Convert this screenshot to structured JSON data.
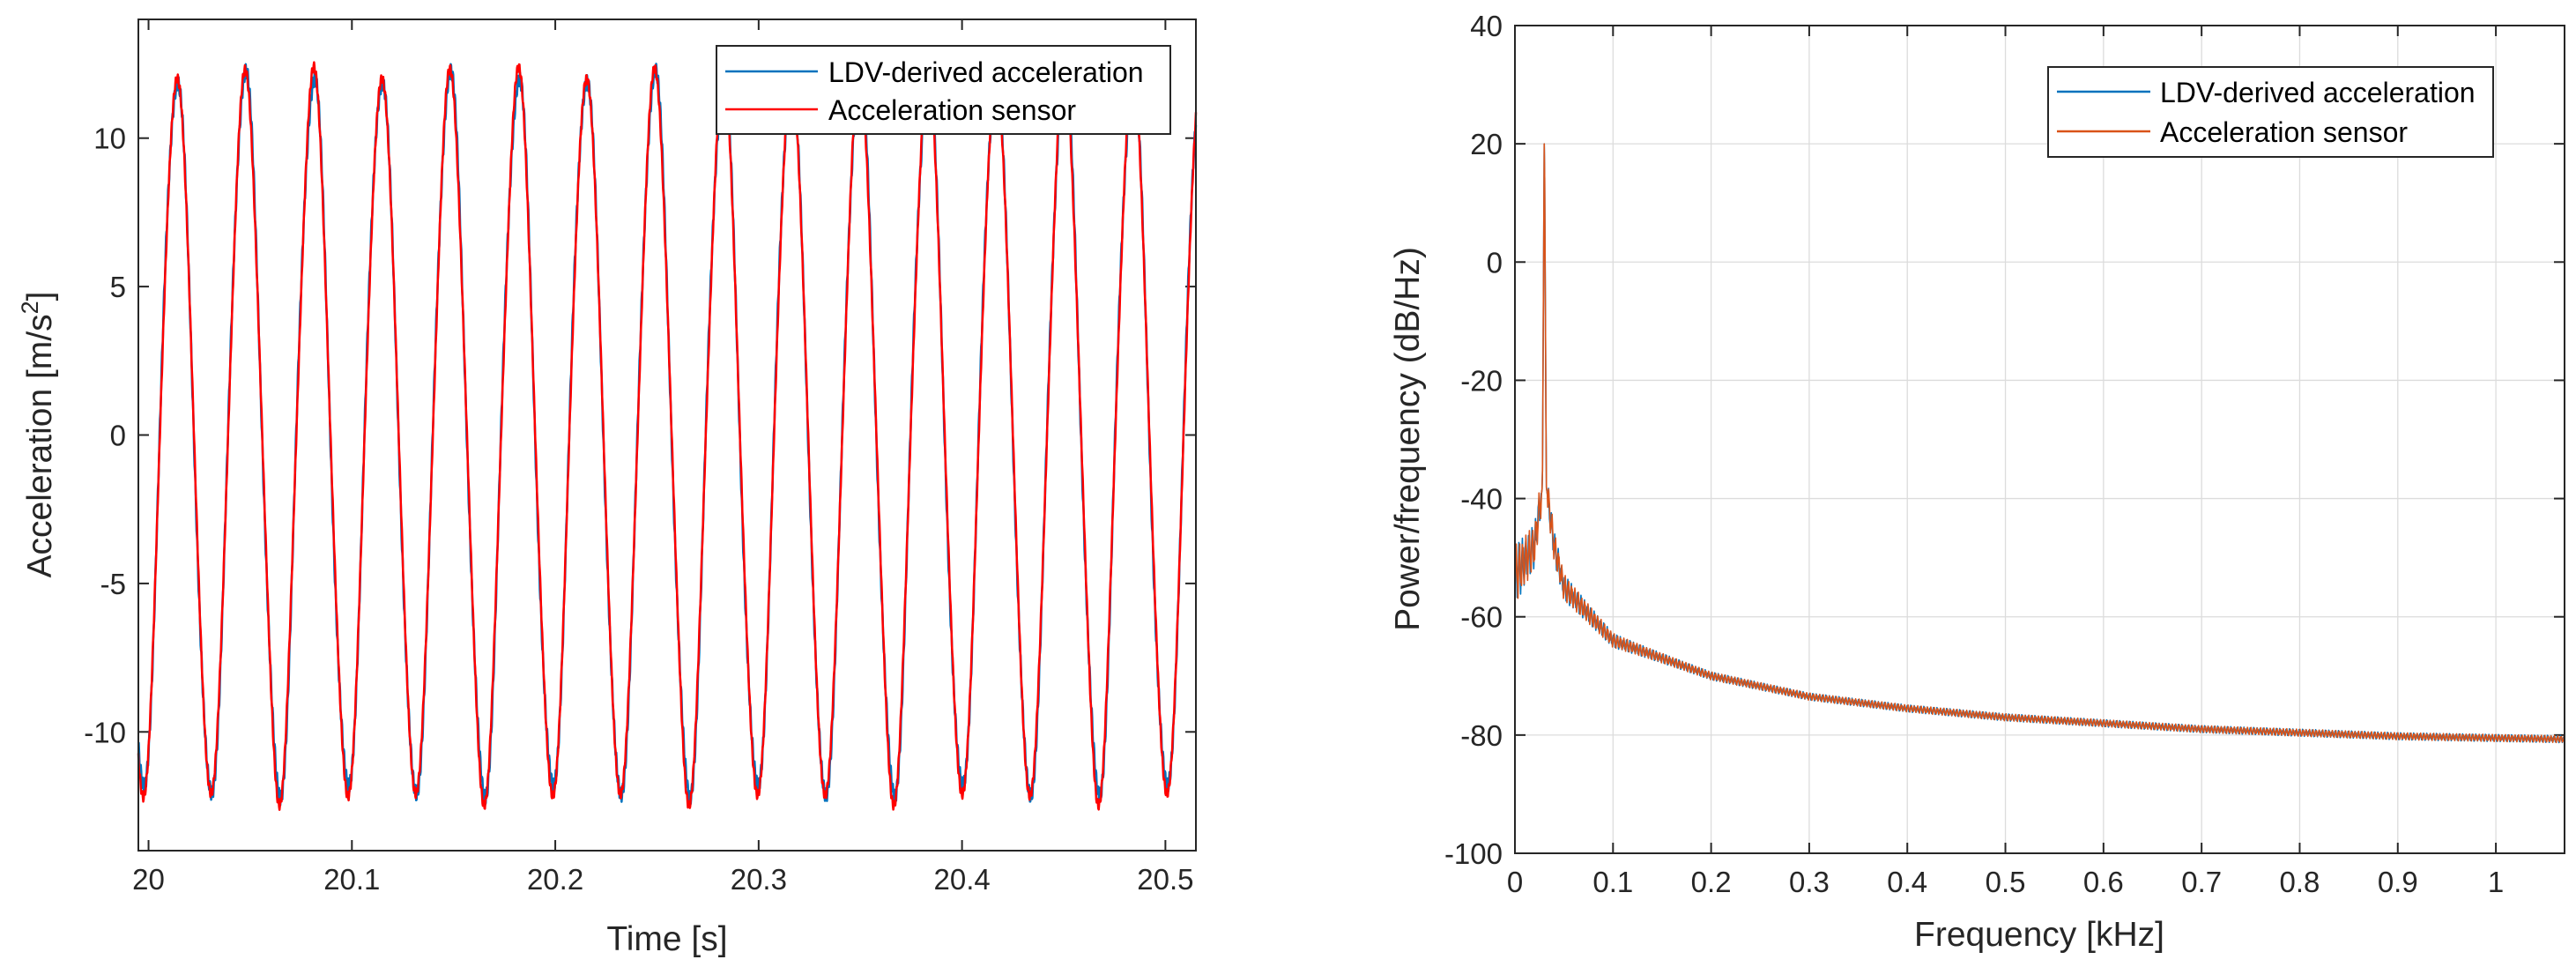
{
  "chart_data": [
    {
      "type": "line",
      "xlabel": "Time [s]",
      "ylabel": "Acceleration [m/s",
      "ylabel_sup": "2",
      "ylabel_suffix": "]",
      "xlim": [
        19.995,
        20.515
      ],
      "ylim": [
        -14.0,
        14.0
      ],
      "xticks": [
        20,
        20.1,
        20.2,
        20.3,
        20.4,
        20.5
      ],
      "xtick_labels": [
        "20",
        "20.1",
        "20.2",
        "20.3",
        "20.4",
        "20.5"
      ],
      "yticks": [
        -10,
        -5,
        0,
        5,
        10
      ],
      "ytick_labels": [
        "-10",
        "-5",
        "0",
        "5",
        "10"
      ],
      "grid": false,
      "legend_position": "top-right",
      "signal": {
        "frequency_hz": 29.8,
        "amplitude": 12.0,
        "peak_time_s": 20.014
      },
      "series": [
        {
          "name": "LDV-derived acceleration",
          "color": "#0072BD"
        },
        {
          "name": "Acceleration sensor",
          "color": "#FF0000"
        }
      ]
    },
    {
      "type": "line",
      "xlabel": "Frequency [kHz]",
      "ylabel": "Power/frequency (dB/Hz)",
      "xlim": [
        0,
        1.07
      ],
      "ylim": [
        -100,
        40
      ],
      "xticks": [
        0,
        0.1,
        0.2,
        0.3,
        0.4,
        0.5,
        0.6,
        0.7,
        0.8,
        0.9,
        1
      ],
      "xtick_labels": [
        "0",
        "0.1",
        "0.2",
        "0.3",
        "0.4",
        "0.5",
        "0.6",
        "0.7",
        "0.8",
        "0.9",
        "1"
      ],
      "yticks": [
        -100,
        -80,
        -60,
        -40,
        -20,
        0,
        20,
        40
      ],
      "ytick_labels": [
        "-100",
        "-80",
        "-60",
        "-40",
        "-20",
        "0",
        "20",
        "40"
      ],
      "grid": true,
      "legend_position": "top-right",
      "peak": {
        "frequency_khz": 0.03,
        "value_db": 24
      },
      "envelope_db": [
        [
          0,
          -53
        ],
        [
          0.02,
          -48
        ],
        [
          0.028,
          -38
        ],
        [
          0.03,
          24
        ],
        [
          0.032,
          -38
        ],
        [
          0.04,
          -48
        ],
        [
          0.05,
          -55
        ],
        [
          0.1,
          -64
        ],
        [
          0.2,
          -70
        ],
        [
          0.3,
          -73.5
        ],
        [
          0.4,
          -75.5
        ],
        [
          0.5,
          -77
        ],
        [
          0.6,
          -78
        ],
        [
          0.7,
          -79
        ],
        [
          0.8,
          -79.6
        ],
        [
          0.9,
          -80.2
        ],
        [
          1.0,
          -80.5
        ],
        [
          1.07,
          -80.7
        ]
      ],
      "series": [
        {
          "name": "LDV-derived acceleration",
          "color": "#0072BD"
        },
        {
          "name": "Acceleration sensor",
          "color": "#D95319"
        }
      ]
    }
  ]
}
